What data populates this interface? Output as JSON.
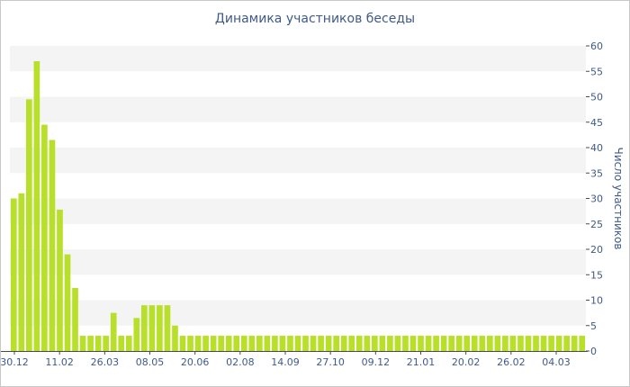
{
  "chart_data": {
    "type": "bar",
    "title": "Динамика участников беседы",
    "ylabel": "Число участников",
    "xlabel": "",
    "ylim": [
      0,
      60
    ],
    "yticks": [
      0,
      5,
      10,
      15,
      20,
      25,
      30,
      35,
      40,
      45,
      50,
      55,
      60
    ],
    "x_tick_labels": [
      "30.12",
      "11.02",
      "26.03",
      "08.05",
      "20.06",
      "02.08",
      "14.09",
      "27.10",
      "09.12",
      "21.01",
      "20.02",
      "26.02",
      "04.03"
    ],
    "values": [
      30,
      31,
      49.5,
      57,
      44.5,
      41.5,
      27.8,
      19,
      12.4,
      3,
      3,
      3,
      3,
      7.5,
      3,
      3,
      6.5,
      9,
      9,
      9,
      9,
      5,
      3,
      3,
      3,
      3,
      3,
      3,
      3,
      3,
      3,
      3,
      3,
      3,
      3,
      3,
      3,
      3,
      3,
      3,
      3,
      3,
      3,
      3,
      3,
      3,
      3,
      3,
      3,
      3,
      3,
      3,
      3,
      3,
      3,
      3,
      3,
      3,
      3,
      3,
      3,
      3,
      3,
      3,
      3,
      3,
      3,
      3,
      3,
      3,
      3,
      3,
      3,
      3,
      3
    ],
    "bar_color": "#b8df2a",
    "grid": true,
    "grid_band_color": "#f4f4f4",
    "axis_side": "right"
  }
}
